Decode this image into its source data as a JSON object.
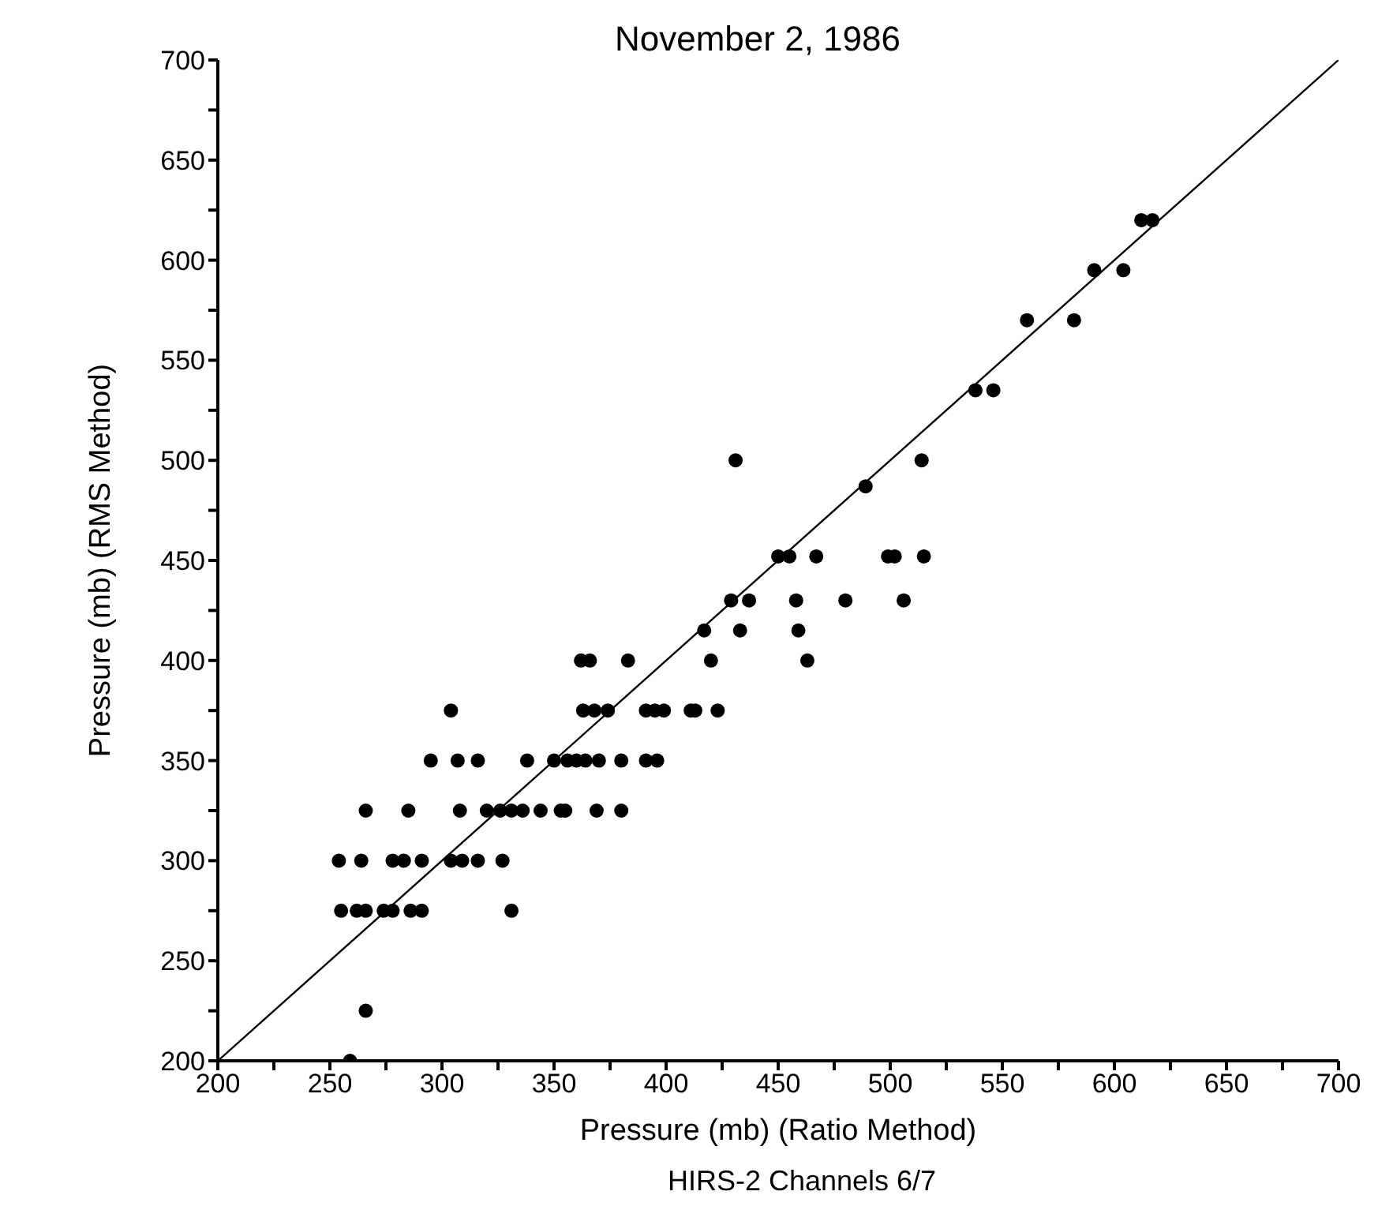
{
  "chart_data": {
    "type": "scatter",
    "title": "November 2, 1986",
    "xlabel": "Pressure (mb) (Ratio Method)",
    "ylabel": "Pressure (mb) (RMS Method)",
    "annotations": [
      "HIRS-2 Channels 6/7"
    ],
    "xlim": [
      200,
      700
    ],
    "ylim": [
      200,
      700
    ],
    "xticks": [
      200,
      {
        "value": 225,
        "label": null
      },
      250,
      {
        "value": 275,
        "label": null
      },
      300,
      {
        "value": 325,
        "label": null
      },
      350,
      {
        "value": 375,
        "label": null
      },
      400,
      {
        "value": 425,
        "label": null
      },
      450,
      {
        "value": 475,
        "label": null
      },
      500,
      {
        "value": 525,
        "label": null
      },
      550,
      {
        "value": 575,
        "label": null
      },
      600,
      {
        "value": 625,
        "label": null
      },
      650,
      {
        "value": 675,
        "label": null
      },
      700
    ],
    "yticks": [
      200,
      {
        "value": 225,
        "label": null
      },
      250,
      {
        "value": 275,
        "label": null
      },
      300,
      {
        "value": 325,
        "label": null
      },
      350,
      {
        "value": 375,
        "label": null
      },
      400,
      {
        "value": 425,
        "label": null
      },
      450,
      {
        "value": 475,
        "label": null
      },
      500,
      {
        "value": 525,
        "label": null
      },
      550,
      {
        "value": 575,
        "label": null
      },
      600,
      {
        "value": 625,
        "label": null
      },
      650,
      {
        "value": 675,
        "label": null
      },
      700
    ],
    "grid": false,
    "series": [
      {
        "color": "#000000",
        "marker": "circle",
        "x": [
          259,
          266,
          255,
          262,
          266,
          274,
          278,
          286,
          291,
          331,
          254,
          264,
          278,
          283,
          291,
          304,
          309,
          316,
          327,
          266,
          285,
          308,
          320,
          326,
          331,
          336,
          344,
          353,
          355,
          369,
          380,
          295,
          307,
          316,
          338,
          350,
          356,
          360,
          364,
          370,
          380,
          391,
          396,
          304,
          363,
          368,
          374,
          391,
          395,
          399,
          411,
          413,
          423,
          362,
          366,
          383,
          420,
          463,
          417,
          433,
          459,
          429,
          437,
          458,
          480,
          506,
          450,
          455,
          467,
          499,
          502,
          515,
          489,
          431,
          514,
          538,
          546,
          561,
          582,
          591,
          604,
          612,
          617
        ],
        "values": [
          200,
          225,
          275,
          275,
          275,
          275,
          275,
          275,
          275,
          275,
          300,
          300,
          300,
          300,
          300,
          300,
          300,
          300,
          300,
          325,
          325,
          325,
          325,
          325,
          325,
          325,
          325,
          325,
          325,
          325,
          325,
          350,
          350,
          350,
          350,
          350,
          350,
          350,
          350,
          350,
          350,
          350,
          350,
          375,
          375,
          375,
          375,
          375,
          375,
          375,
          375,
          375,
          375,
          400,
          400,
          400,
          400,
          400,
          415,
          415,
          415,
          430,
          430,
          430,
          430,
          430,
          452,
          452,
          452,
          452,
          452,
          452,
          487,
          500,
          500,
          535,
          535,
          570,
          570,
          595,
          595,
          620,
          620
        ]
      },
      {
        "type": "line",
        "color": "#000000",
        "x": [
          200,
          700
        ],
        "values": [
          200,
          700
        ]
      }
    ]
  }
}
